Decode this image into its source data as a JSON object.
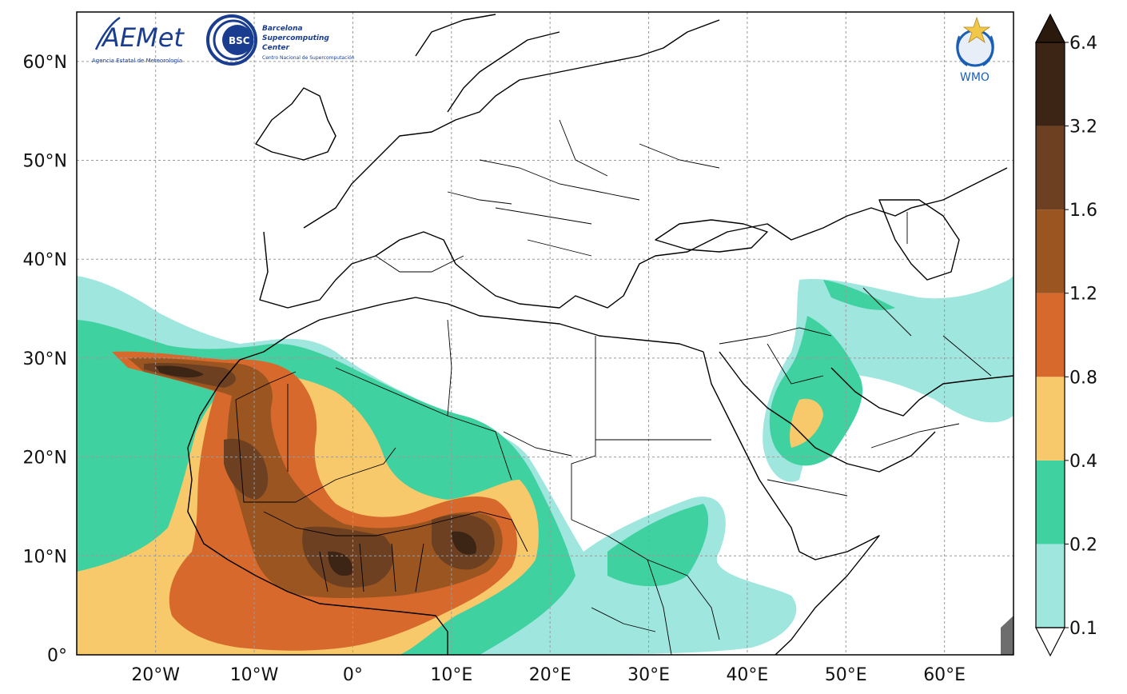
{
  "map": {
    "lat_ticks": [
      "60°N",
      "50°N",
      "40°N",
      "30°N",
      "20°N",
      "10°N",
      "0°"
    ],
    "lon_ticks": [
      "20°W",
      "10°W",
      "0°",
      "10°E",
      "20°E",
      "30°E",
      "40°E",
      "50°E",
      "60°E"
    ],
    "lat_values": [
      60,
      50,
      40,
      30,
      20,
      10,
      0
    ],
    "lon_values": [
      -20,
      -10,
      0,
      10,
      20,
      30,
      40,
      50,
      60
    ],
    "extent": {
      "lon_min": -28,
      "lon_max": 67,
      "lat_min": 0,
      "lat_max": 65
    },
    "gridlines": true
  },
  "colorbar": {
    "labels": [
      "6.4",
      "3.2",
      "1.6",
      "1.2",
      "0.8",
      "0.4",
      "0.2",
      "0.1"
    ],
    "levels": [
      0.1,
      0.2,
      0.4,
      0.8,
      1.2,
      1.6,
      3.2,
      6.4
    ],
    "colors": [
      "#ffffff",
      "#9ee6de",
      "#3fd1a0",
      "#f7c96b",
      "#d8692c",
      "#9b5520",
      "#6e4022",
      "#3c2515",
      "#2a1a0e"
    ]
  },
  "logos": {
    "aemet_text": "AEMet",
    "aemet_sub": "Agencia Estatal de Meteorología",
    "bsc_badge": "BSC",
    "bsc_line1": "Barcelona",
    "bsc_line2": "Supercomputing",
    "bsc_line3": "Center",
    "bsc_sub": "Centro Nacional de Supercomputación",
    "wmo_text": "WMO"
  }
}
